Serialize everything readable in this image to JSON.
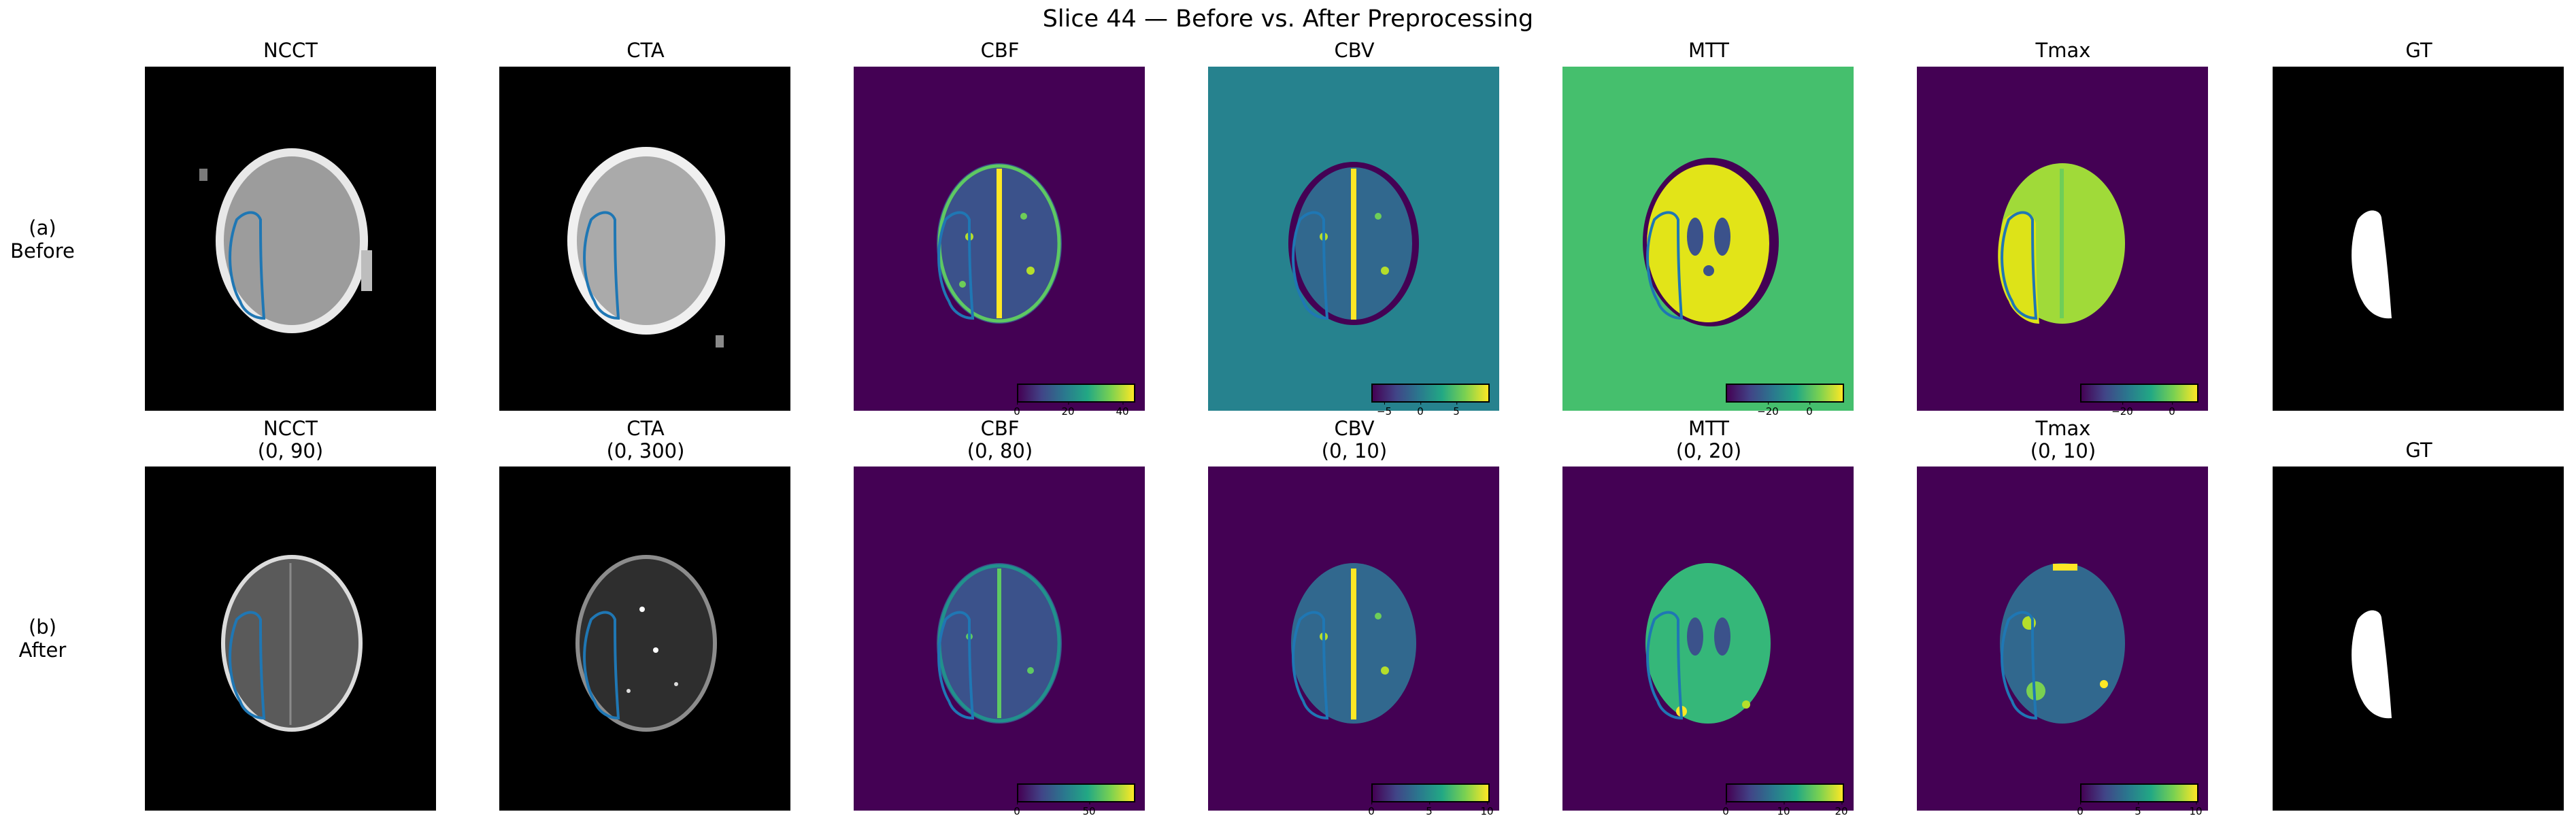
{
  "figure": {
    "title": "Slice 44 — Before vs. After Preprocessing",
    "rows": [
      {
        "label_line1": "(a)",
        "label_line2": "Before"
      },
      {
        "label_line1": "(b)",
        "label_line2": "After"
      }
    ]
  },
  "before": {
    "ncct": {
      "title": "NCCT"
    },
    "cta": {
      "title": "CTA"
    },
    "cbf": {
      "title": "CBF",
      "colorbar_ticks": [
        "0",
        "20",
        "40"
      ]
    },
    "cbv": {
      "title": "CBV",
      "colorbar_ticks": [
        "−5",
        "0",
        "5"
      ]
    },
    "mtt": {
      "title": "MTT",
      "colorbar_ticks": [
        "−20",
        "0"
      ]
    },
    "tmax": {
      "title": "Tmax",
      "colorbar_ticks": [
        "−20",
        "0"
      ]
    },
    "gt": {
      "title": "GT"
    }
  },
  "after": {
    "ncct": {
      "title": "NCCT",
      "range": "(0, 90)"
    },
    "cta": {
      "title": "CTA",
      "range": "(0, 300)"
    },
    "cbf": {
      "title": "CBF",
      "range": "(0, 80)",
      "colorbar_ticks": [
        "0",
        "50"
      ]
    },
    "cbv": {
      "title": "CBV",
      "range": "(0, 10)",
      "colorbar_ticks": [
        "0",
        "5",
        "10"
      ]
    },
    "mtt": {
      "title": "MTT",
      "range": "(0, 20)",
      "colorbar_ticks": [
        "0",
        "10",
        "20"
      ]
    },
    "tmax": {
      "title": "Tmax",
      "range": "(0, 10)",
      "colorbar_ticks": [
        "0",
        "5",
        "10"
      ]
    },
    "gt": {
      "title": "GT"
    }
  },
  "colors": {
    "contour": "#1f77b4",
    "viridis_dark": "#440154",
    "viridis_teal": "#26828e",
    "viridis_green": "#45bf6d",
    "viridis_yellow": "#fde725",
    "ct_background": "#000000",
    "mask": "#ffffff"
  }
}
